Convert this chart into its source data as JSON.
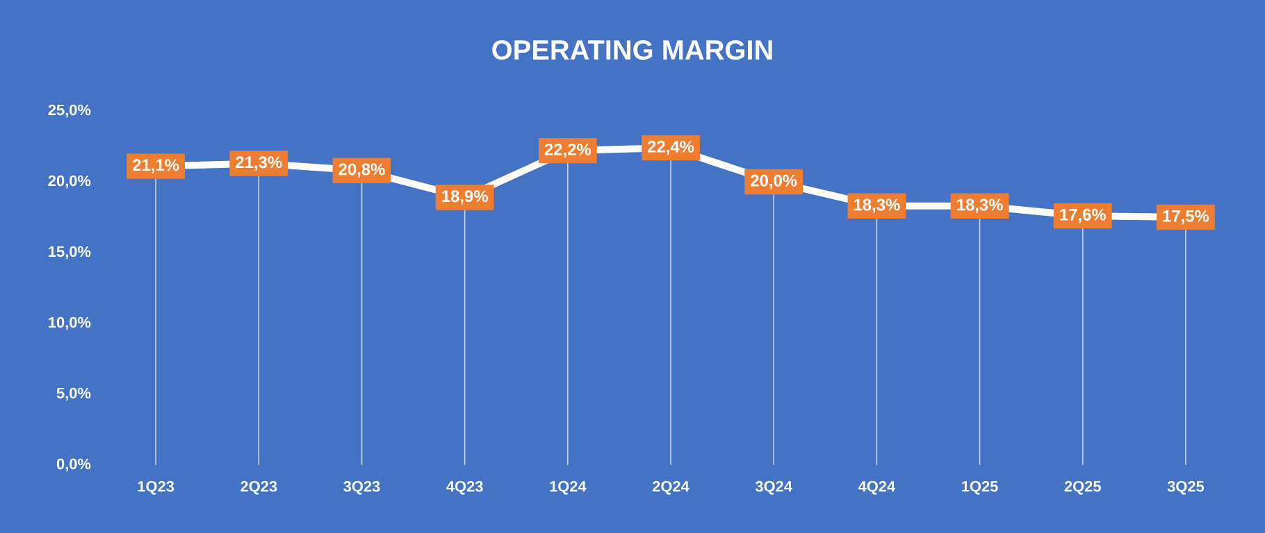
{
  "chart_data": {
    "type": "line",
    "title": "OPERATING MARGIN",
    "categories": [
      "1Q23",
      "2Q23",
      "3Q23",
      "4Q23",
      "1Q24",
      "2Q24",
      "3Q24",
      "4Q24",
      "1Q25",
      "2Q25",
      "3Q25"
    ],
    "values": [
      21.1,
      21.3,
      20.8,
      18.9,
      22.2,
      22.4,
      20.0,
      18.3,
      18.3,
      17.6,
      17.5
    ],
    "value_labels": [
      "21,1%",
      "21,3%",
      "20,8%",
      "18,9%",
      "22,2%",
      "22,4%",
      "20,0%",
      "18,3%",
      "18,3%",
      "17,6%",
      "17,5%"
    ],
    "color": "#ffffff",
    "ylim": [
      0,
      25
    ],
    "yticks": [
      {
        "value": 0,
        "label": "0,0%"
      },
      {
        "value": 5,
        "label": "5,0%"
      },
      {
        "value": 10,
        "label": "10,0%"
      },
      {
        "value": 15,
        "label": "15,0%"
      },
      {
        "value": 20,
        "label": "20,0%"
      },
      {
        "value": 25,
        "label": "25,0%"
      }
    ],
    "marker": "square",
    "line_style": "solid",
    "grid": "x"
  }
}
